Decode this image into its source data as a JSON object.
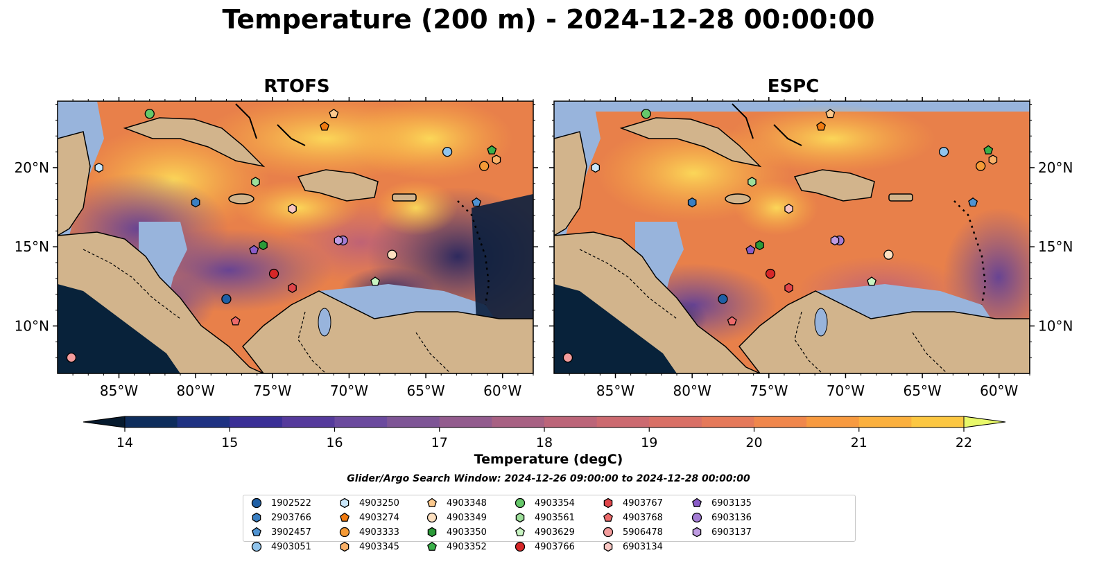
{
  "figure": {
    "title": "Temperature (200 m) - 2024-12-28 00:00:00",
    "panels": [
      {
        "title": "RTOFS",
        "model": "rtofs"
      },
      {
        "title": "ESPC",
        "model": "espc"
      }
    ],
    "lon_ticks": [
      "85°W",
      "80°W",
      "75°W",
      "70°W",
      "65°W",
      "60°W"
    ],
    "lat_ticks": [
      "20°N",
      "15°N",
      "10°N"
    ],
    "colorbar": {
      "label": "Temperature (degC)",
      "min": 14,
      "max": 22,
      "step": 0.5,
      "ticks": [
        "14",
        "15",
        "16",
        "17",
        "18",
        "19",
        "20",
        "21",
        "22"
      ],
      "extend": "both"
    },
    "search_window": "Glider/Argo Search Window: 2024-12-26 09:00:00 to 2024-12-28 00:00:00",
    "colors": {
      "land": "#d2b48c",
      "shelf": "#98b4dc",
      "deep_dark": "#08223a"
    }
  },
  "legend": [
    {
      "id": "1902522",
      "marker": "circle",
      "color": "#1f5fa5"
    },
    {
      "id": "2903766",
      "marker": "hexagon",
      "color": "#3a7fc2"
    },
    {
      "id": "3902457",
      "marker": "pentagon",
      "color": "#4f93d2"
    },
    {
      "id": "4903051",
      "marker": "circle",
      "color": "#90c4ec"
    },
    {
      "id": "4903250",
      "marker": "hexagon",
      "color": "#c9e6fa"
    },
    {
      "id": "4903274",
      "marker": "pentagon",
      "color": "#f07a10"
    },
    {
      "id": "4903333",
      "marker": "circle",
      "color": "#f59a36"
    },
    {
      "id": "4903345",
      "marker": "hexagon",
      "color": "#f9b068"
    },
    {
      "id": "4903348",
      "marker": "pentagon",
      "color": "#fcc98d"
    },
    {
      "id": "4903349",
      "marker": "circle",
      "color": "#fde0c0"
    },
    {
      "id": "4903350",
      "marker": "hexagon",
      "color": "#2a9a38"
    },
    {
      "id": "4903352",
      "marker": "pentagon",
      "color": "#3ab04a"
    },
    {
      "id": "4903354",
      "marker": "circle",
      "color": "#66c86a"
    },
    {
      "id": "4903561",
      "marker": "hexagon",
      "color": "#9ddf9a"
    },
    {
      "id": "4903629",
      "marker": "pentagon",
      "color": "#c8f4c2"
    },
    {
      "id": "4903766",
      "marker": "circle",
      "color": "#d62728"
    },
    {
      "id": "4903767",
      "marker": "hexagon",
      "color": "#e0454a"
    },
    {
      "id": "4903768",
      "marker": "pentagon",
      "color": "#ec6a6a"
    },
    {
      "id": "5906478",
      "marker": "circle",
      "color": "#f39c9c"
    },
    {
      "id": "6903134",
      "marker": "hexagon",
      "color": "#f8c6c2"
    },
    {
      "id": "6903135",
      "marker": "pentagon",
      "color": "#8a5cc8"
    },
    {
      "id": "6903136",
      "marker": "circle",
      "color": "#a47cd4"
    },
    {
      "id": "6903137",
      "marker": "hexagon",
      "color": "#bf9ce2"
    }
  ],
  "floats": [
    {
      "id": "1902522",
      "lon": -78.0,
      "lat": 11.7
    },
    {
      "id": "2903766",
      "lon": -80.0,
      "lat": 17.8
    },
    {
      "id": "3902457",
      "lon": -61.7,
      "lat": 17.8
    },
    {
      "id": "4903051",
      "lon": -63.6,
      "lat": 21.0
    },
    {
      "id": "4903250",
      "lon": -86.3,
      "lat": 20.0
    },
    {
      "id": "4903274",
      "lon": -71.6,
      "lat": 22.6
    },
    {
      "id": "4903333",
      "lon": -61.2,
      "lat": 20.1
    },
    {
      "id": "4903345",
      "lon": -60.4,
      "lat": 20.5
    },
    {
      "id": "4903348",
      "lon": -71.0,
      "lat": 23.4
    },
    {
      "id": "4903349",
      "lon": -67.2,
      "lat": 14.5
    },
    {
      "id": "4903350",
      "lon": -75.6,
      "lat": 15.1
    },
    {
      "id": "4903352",
      "lon": -60.7,
      "lat": 21.1
    },
    {
      "id": "4903354",
      "lon": -83.0,
      "lat": 23.4
    },
    {
      "id": "4903561",
      "lon": -76.1,
      "lat": 19.1
    },
    {
      "id": "4903629",
      "lon": -68.3,
      "lat": 12.8
    },
    {
      "id": "4903766",
      "lon": -74.9,
      "lat": 13.3
    },
    {
      "id": "4903767",
      "lon": -73.7,
      "lat": 12.4
    },
    {
      "id": "4903768",
      "lon": -77.4,
      "lat": 10.3
    },
    {
      "id": "5906478",
      "lon": -88.1,
      "lat": 8.0
    },
    {
      "id": "6903134",
      "lon": -73.7,
      "lat": 17.4
    },
    {
      "id": "6903135",
      "lon": -76.2,
      "lat": 14.8
    },
    {
      "id": "6903136",
      "lon": -70.4,
      "lat": 15.4
    },
    {
      "id": "6903137",
      "lon": -70.7,
      "lat": 15.4
    }
  ]
}
